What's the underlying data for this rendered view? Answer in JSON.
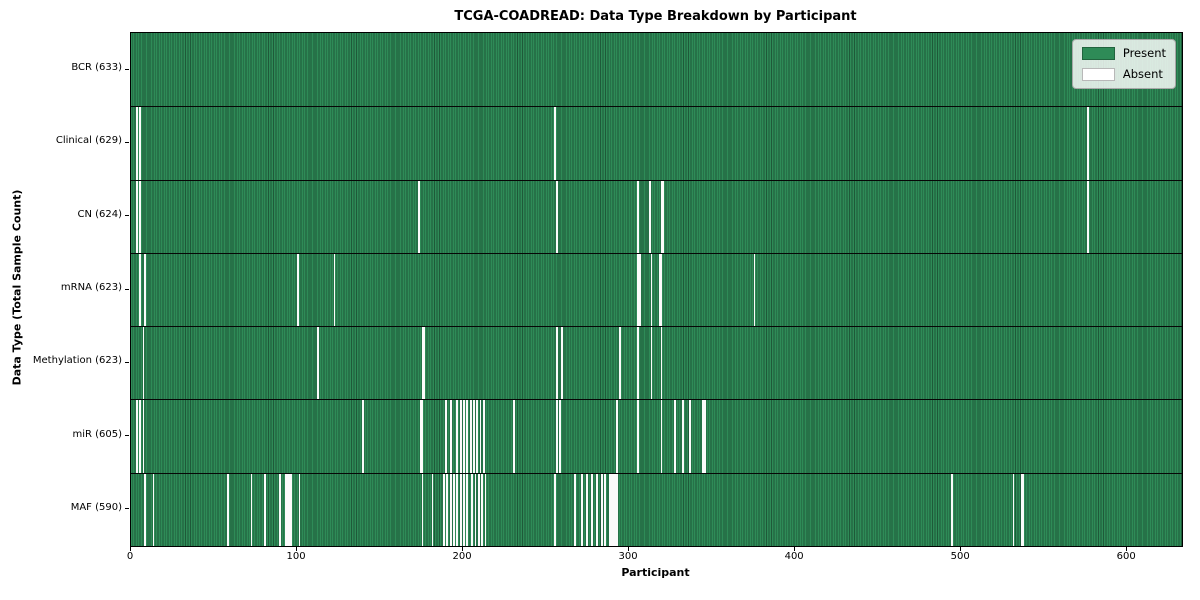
{
  "title": "TCGA-COADREAD: Data Type Breakdown by Participant",
  "chart_data": {
    "type": "heatmap",
    "title": "TCGA-COADREAD: Data Type Breakdown by Participant",
    "xlabel": "Participant",
    "ylabel": "Data Type (Total Sample Count)",
    "x_ticks": [
      0,
      100,
      200,
      300,
      400,
      500,
      600
    ],
    "x_range": [
      0,
      633
    ],
    "total_participants": 633,
    "grid": false,
    "colors": {
      "present": "#2e8b57",
      "present_edge": "#1e5a39",
      "absent": "#fbfbfb",
      "row_divider": "#060606"
    },
    "legend": {
      "position": "upper right",
      "entries": [
        {
          "label": "Present",
          "color": "#2e8b57"
        },
        {
          "label": "Absent",
          "color": "#ffffff"
        }
      ]
    },
    "rows": [
      {
        "name": "BCR",
        "label": "BCR (633)",
        "count": 633,
        "absent_participants": []
      },
      {
        "name": "Clinical",
        "label": "Clinical (629)",
        "count": 629,
        "absent_participants": [
          3,
          5,
          255,
          576
        ]
      },
      {
        "name": "CN",
        "label": "CN (624)",
        "count": 624,
        "absent_participants": [
          3,
          5,
          173,
          256,
          305,
          312,
          319,
          320,
          576
        ]
      },
      {
        "name": "mRNA",
        "label": "mRNA (623)",
        "count": 623,
        "absent_participants": [
          5,
          8,
          100,
          122,
          305,
          306,
          313,
          318,
          319,
          375
        ]
      },
      {
        "name": "Methylation",
        "label": "Methylation (623)",
        "count": 623,
        "absent_participants": [
          7,
          112,
          175,
          176,
          256,
          259,
          294,
          305,
          313,
          319
        ]
      },
      {
        "name": "miR",
        "label": "miR (605)",
        "count": 605,
        "absent_participants": [
          3,
          5,
          7,
          139,
          174,
          175,
          189,
          192,
          196,
          198,
          200,
          202,
          204,
          206,
          208,
          210,
          212,
          230,
          256,
          258,
          292,
          305,
          319,
          327,
          332,
          336,
          344,
          345
        ]
      },
      {
        "name": "MAF",
        "label": "MAF (590)",
        "count": 590,
        "absent_participants": [
          8,
          13,
          58,
          72,
          80,
          89,
          93,
          94,
          95,
          96,
          101,
          175,
          181,
          188,
          190,
          192,
          194,
          196,
          198,
          200,
          202,
          205,
          207,
          209,
          211,
          213,
          255,
          267,
          271,
          274,
          277,
          280,
          283,
          285,
          288,
          289,
          290,
          291,
          292,
          494,
          531,
          536,
          537
        ]
      }
    ]
  }
}
